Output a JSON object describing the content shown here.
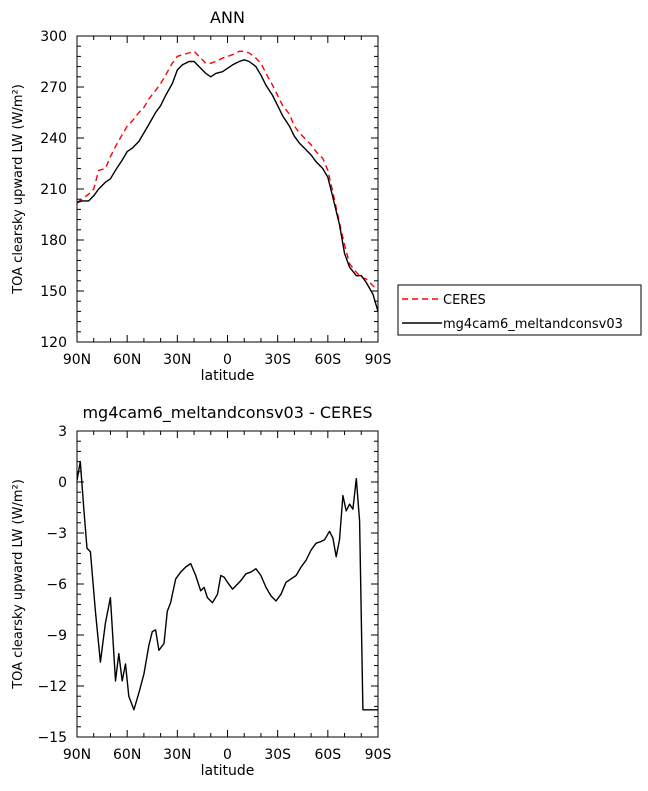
{
  "chart_data": [
    {
      "type": "line",
      "title": "ANN",
      "xlabel": "latitude",
      "ylabel": "TOA clearsky upward LW (W/m²)",
      "xlim": [
        90,
        -90
      ],
      "ylim": [
        120,
        300
      ],
      "xticks": [
        90,
        60,
        30,
        0,
        -30,
        -60,
        -90
      ],
      "xtick_labels": [
        "90N",
        "60N",
        "30N",
        "0",
        "30S",
        "60S",
        "90S"
      ],
      "yticks": [
        120,
        150,
        180,
        210,
        240,
        270,
        300
      ],
      "ytick_labels": [
        "120",
        "150",
        "180",
        "210",
        "240",
        "270",
        "300"
      ],
      "legend_placement": "right",
      "series": [
        {
          "name": "CERES",
          "color": "#ff0000",
          "dash": "dashed",
          "x": [
            90,
            87,
            83,
            80,
            77,
            73,
            70,
            67,
            63,
            60,
            57,
            53,
            50,
            47,
            43,
            40,
            37,
            33,
            30,
            27,
            23,
            20,
            17,
            13,
            10,
            7,
            3,
            0,
            -3,
            -7,
            -10,
            -13,
            -17,
            -20,
            -23,
            -27,
            -30,
            -33,
            -37,
            -40,
            -43,
            -47,
            -50,
            -53,
            -57,
            -60,
            -63,
            -67,
            -70,
            -73,
            -77,
            -80,
            -83,
            -87,
            -90
          ],
          "y": [
            202,
            204,
            207,
            210,
            221,
            222,
            229,
            235,
            242,
            247,
            250,
            255,
            258,
            263,
            268,
            272,
            277,
            284,
            288,
            289,
            290,
            291,
            288,
            284,
            284,
            285,
            287,
            288,
            289,
            291,
            291,
            290,
            287,
            284,
            278,
            271,
            265,
            259,
            254,
            247,
            243,
            239,
            236,
            232,
            228,
            221,
            208,
            190,
            177,
            166,
            161,
            158,
            157,
            153,
            151
          ]
        },
        {
          "name": "mg4cam6_meltandconsv03",
          "color": "#000000",
          "dash": "solid",
          "x": [
            90,
            87,
            83,
            80,
            77,
            73,
            70,
            67,
            63,
            60,
            57,
            53,
            50,
            47,
            43,
            40,
            37,
            33,
            30,
            27,
            23,
            20,
            17,
            13,
            10,
            7,
            3,
            0,
            -3,
            -7,
            -10,
            -13,
            -17,
            -20,
            -23,
            -27,
            -30,
            -33,
            -37,
            -40,
            -43,
            -47,
            -50,
            -53,
            -57,
            -60,
            -63,
            -67,
            -70,
            -73,
            -77,
            -80,
            -83,
            -87,
            -90
          ],
          "y": [
            202,
            203,
            203,
            206,
            210,
            214,
            216,
            221,
            227,
            232,
            234,
            238,
            243,
            248,
            255,
            259,
            265,
            272,
            280,
            283,
            285,
            285,
            282,
            278,
            276,
            278,
            279,
            281,
            283,
            285,
            286,
            285,
            282,
            277,
            271,
            265,
            259,
            253,
            247,
            241,
            237,
            233,
            230,
            226,
            222,
            217,
            205,
            189,
            172,
            164,
            159,
            159,
            155,
            148,
            138
          ]
        }
      ]
    },
    {
      "type": "line",
      "title": "mg4cam6_meltandconsv03 - CERES",
      "xlabel": "latitude",
      "ylabel": "TOA clearsky upward LW (W/m²)",
      "xlim": [
        90,
        -90
      ],
      "ylim": [
        -15,
        3
      ],
      "xticks": [
        90,
        60,
        30,
        0,
        -30,
        -60,
        -90
      ],
      "xtick_labels": [
        "90N",
        "60N",
        "30N",
        "0",
        "30S",
        "60S",
        "90S"
      ],
      "yticks": [
        -15,
        -12,
        -9,
        -6,
        -3,
        0,
        3
      ],
      "ytick_labels": [
        "-15",
        "-12",
        "-9",
        "-6",
        "-3",
        "0",
        "3"
      ],
      "series": [
        {
          "color": "#000000",
          "dash": "solid",
          "x": [
            90,
            88,
            86,
            84,
            82,
            79,
            76,
            73,
            70,
            67,
            65,
            63,
            61,
            59,
            56,
            53,
            50,
            47,
            45,
            43,
            41,
            38,
            36,
            34,
            31,
            28,
            25,
            22,
            19,
            16,
            14,
            12,
            9,
            6,
            4,
            2,
            0,
            -3,
            -5,
            -8,
            -11,
            -14,
            -17,
            -20,
            -23,
            -26,
            -29,
            -32,
            -35,
            -38,
            -41,
            -44,
            -47,
            -50,
            -53,
            -56,
            -58,
            -61,
            -63,
            -65,
            -67,
            -69,
            -71,
            -73,
            -75,
            -77,
            -79,
            -81,
            -83,
            -85,
            -87,
            -90
          ],
          "y": [
            0.1,
            1.2,
            -1.5,
            -3.9,
            -4.1,
            -7.6,
            -10.6,
            -8.3,
            -6.8,
            -11.7,
            -10.1,
            -11.7,
            -10.7,
            -12.6,
            -13.4,
            -12.4,
            -11.3,
            -9.6,
            -8.8,
            -8.7,
            -9.9,
            -9.5,
            -7.6,
            -7.1,
            -5.7,
            -5.3,
            -5.0,
            -4.8,
            -5.5,
            -6.4,
            -6.2,
            -6.8,
            -7.1,
            -6.6,
            -5.5,
            -5.6,
            -5.9,
            -6.3,
            -6.1,
            -5.8,
            -5.4,
            -5.3,
            -5.1,
            -5.5,
            -6.2,
            -6.7,
            -7.0,
            -6.6,
            -5.9,
            -5.7,
            -5.5,
            -5.0,
            -4.6,
            -4.0,
            -3.6,
            -3.5,
            -3.4,
            -2.9,
            -3.3,
            -4.4,
            -3.4,
            -0.8,
            -1.7,
            -1.3,
            -1.6,
            0.2,
            -2.3,
            -13.4,
            -13.4,
            -13.4,
            -13.4,
            -13.4
          ]
        }
      ]
    }
  ]
}
